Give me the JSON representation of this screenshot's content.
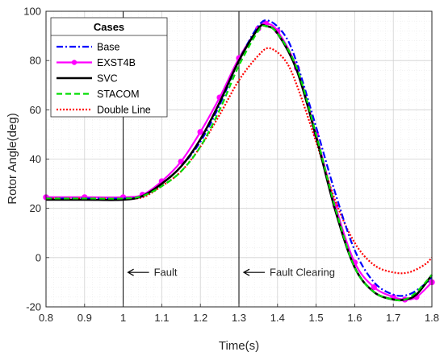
{
  "chart_data": {
    "type": "line",
    "xlabel": "Time(s)",
    "ylabel": "Rotor Angle(deg)",
    "xlim": [
      0.8,
      1.8
    ],
    "ylim": [
      -20,
      100
    ],
    "xticks": [
      "0.8",
      "0.9",
      "1",
      "1.1",
      "1.2",
      "1.3",
      "1.4",
      "1.5",
      "1.6",
      "1.7",
      "1.8"
    ],
    "yticks": [
      "-20",
      "0",
      "20",
      "40",
      "60",
      "80",
      "100"
    ],
    "grid": true,
    "legend": {
      "title": "Cases",
      "placement": "top-left"
    },
    "vlines": [
      {
        "x": 1.0,
        "label": "Fault",
        "label_y": -6
      },
      {
        "x": 1.3,
        "label": "Fault Clearing",
        "label_y": -6
      }
    ],
    "series": [
      {
        "name": "Base",
        "color": "#0000ff",
        "style": "dashdot",
        "x": [
          0.8,
          0.9,
          1.0,
          1.05,
          1.1,
          1.15,
          1.2,
          1.25,
          1.3,
          1.35,
          1.38,
          1.42,
          1.45,
          1.5,
          1.55,
          1.6,
          1.65,
          1.7,
          1.74,
          1.78,
          1.8
        ],
        "y": [
          24,
          24,
          24,
          25,
          30,
          37,
          47,
          62,
          80,
          94,
          96,
          90,
          79,
          53,
          26,
          3,
          -10,
          -15,
          -15,
          -11,
          -8
        ]
      },
      {
        "name": "EXST4B",
        "color": "#ff00ff",
        "style": "solid",
        "marker": "circle",
        "x": [
          0.8,
          0.9,
          1.0,
          1.05,
          1.1,
          1.15,
          1.2,
          1.25,
          1.3,
          1.35,
          1.37,
          1.4,
          1.45,
          1.5,
          1.55,
          1.6,
          1.65,
          1.7,
          1.73,
          1.76,
          1.8
        ],
        "y": [
          24.5,
          24.5,
          24.5,
          25.5,
          31,
          39,
          51,
          65,
          81,
          93,
          95,
          92,
          77,
          50,
          21,
          -2,
          -12,
          -16,
          -17,
          -16,
          -10
        ]
      },
      {
        "name": "SVC",
        "color": "#000000",
        "style": "solid",
        "x": [
          0.8,
          0.9,
          1.0,
          1.05,
          1.1,
          1.15,
          1.2,
          1.25,
          1.3,
          1.35,
          1.37,
          1.4,
          1.45,
          1.5,
          1.55,
          1.6,
          1.65,
          1.7,
          1.73,
          1.76,
          1.8
        ],
        "y": [
          23.5,
          23.5,
          23.5,
          25,
          30,
          37,
          48,
          63,
          80,
          93,
          94,
          91,
          76,
          49,
          19,
          -4,
          -14,
          -17,
          -17,
          -15,
          -7
        ]
      },
      {
        "name": "STACOM",
        "color": "#00dd00",
        "style": "dashed",
        "x": [
          0.8,
          0.9,
          1.0,
          1.05,
          1.1,
          1.15,
          1.2,
          1.25,
          1.3,
          1.35,
          1.37,
          1.4,
          1.45,
          1.5,
          1.55,
          1.6,
          1.65,
          1.7,
          1.73,
          1.76,
          1.8
        ],
        "y": [
          24,
          24,
          24,
          25,
          29,
          35,
          45,
          60,
          78,
          92,
          94,
          91,
          77,
          50,
          20,
          -4,
          -14,
          -17,
          -17,
          -14,
          -7
        ]
      },
      {
        "name": "Double Line",
        "color": "#ff0000",
        "style": "dotted",
        "x": [
          0.8,
          0.9,
          1.0,
          1.05,
          1.1,
          1.15,
          1.2,
          1.25,
          1.3,
          1.35,
          1.38,
          1.42,
          1.45,
          1.5,
          1.55,
          1.6,
          1.65,
          1.7,
          1.74,
          1.78,
          1.8
        ],
        "y": [
          24,
          24,
          24,
          24.5,
          29,
          35,
          45,
          58,
          72,
          82,
          85,
          80,
          70,
          47,
          23,
          6,
          -3,
          -6,
          -6,
          -3,
          0
        ]
      }
    ]
  }
}
